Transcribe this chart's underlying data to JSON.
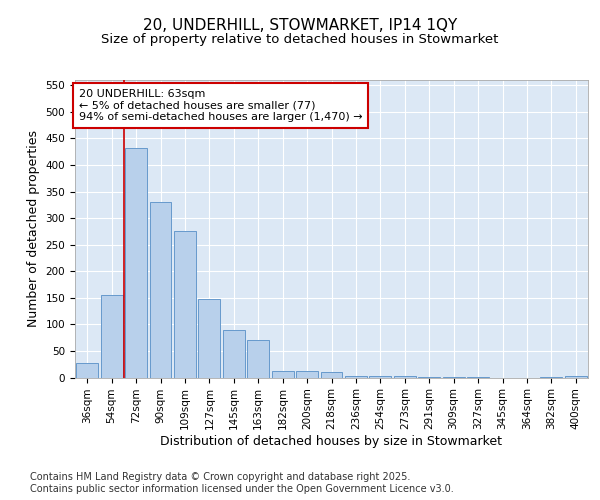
{
  "title": "20, UNDERHILL, STOWMARKET, IP14 1QY",
  "subtitle": "Size of property relative to detached houses in Stowmarket",
  "xlabel": "Distribution of detached houses by size in Stowmarket",
  "ylabel": "Number of detached properties",
  "categories": [
    "36sqm",
    "54sqm",
    "72sqm",
    "90sqm",
    "109sqm",
    "127sqm",
    "145sqm",
    "163sqm",
    "182sqm",
    "200sqm",
    "218sqm",
    "236sqm",
    "254sqm",
    "273sqm",
    "291sqm",
    "309sqm",
    "327sqm",
    "345sqm",
    "364sqm",
    "382sqm",
    "400sqm"
  ],
  "values": [
    28,
    155,
    432,
    330,
    275,
    148,
    90,
    70,
    13,
    12,
    10,
    3,
    2,
    2,
    1,
    1,
    1,
    0,
    0,
    1,
    3
  ],
  "bar_color": "#b8d0eb",
  "bar_edge_color": "#6699cc",
  "vline_x_index": 1.5,
  "vline_color": "#cc0000",
  "annotation_text": "20 UNDERHILL: 63sqm\n← 5% of detached houses are smaller (77)\n94% of semi-detached houses are larger (1,470) →",
  "annotation_box_color": "#ffffff",
  "annotation_box_edge_color": "#cc0000",
  "ylim": [
    0,
    560
  ],
  "yticks": [
    0,
    50,
    100,
    150,
    200,
    250,
    300,
    350,
    400,
    450,
    500,
    550
  ],
  "fig_bg_color": "#ffffff",
  "plot_bg_color": "#dce8f5",
  "grid_color": "#ffffff",
  "footer_text": "Contains HM Land Registry data © Crown copyright and database right 2025.\nContains public sector information licensed under the Open Government Licence v3.0.",
  "title_fontsize": 11,
  "subtitle_fontsize": 9.5,
  "axis_label_fontsize": 9,
  "tick_fontsize": 7.5,
  "annotation_fontsize": 8,
  "footer_fontsize": 7
}
